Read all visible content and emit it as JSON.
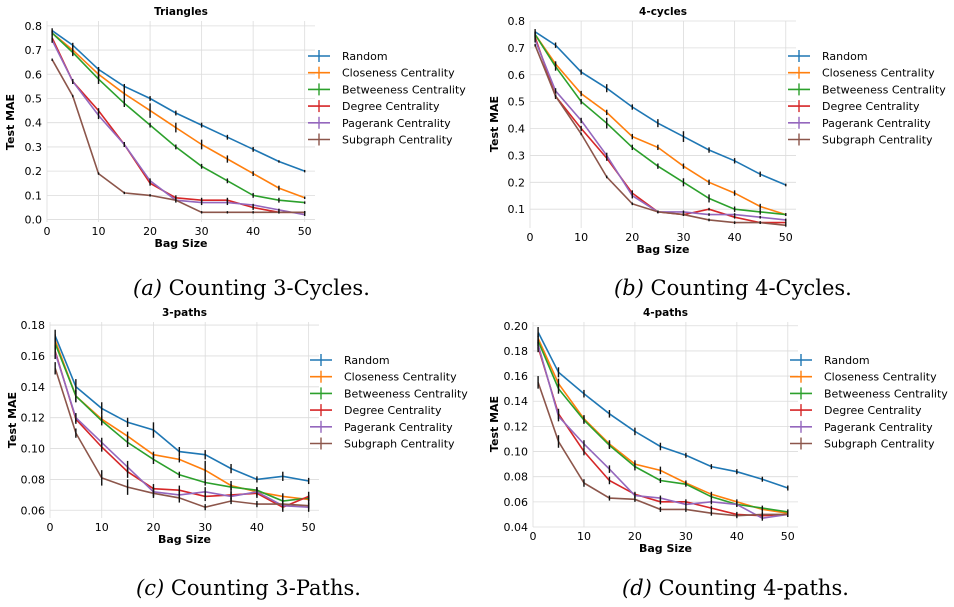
{
  "captions": [
    {
      "letter": "(a)",
      "text": " Counting 3-Cycles."
    },
    {
      "letter": "(b)",
      "text": " Counting 4-Cycles."
    },
    {
      "letter": "(c)",
      "text": " Counting 3-Paths."
    },
    {
      "letter": "(d)",
      "text": " Counting 4-paths."
    }
  ],
  "colors": {
    "Random": "#1f77b4",
    "Closeness Centrality": "#ff7f0e",
    "Betweeness Centrality": "#2ca02c",
    "Degree Centrality": "#d62728",
    "Pagerank Centrality": "#9467bd",
    "Subgraph Centrality": "#8c564b"
  },
  "chart_data": [
    {
      "type": "line",
      "title": "Triangles",
      "xlabel": "Bag Size",
      "ylabel": "Test MAE",
      "xlim": [
        0,
        52
      ],
      "ylim": [
        -0.01,
        0.82
      ],
      "xticks": [
        0,
        10,
        20,
        30,
        40,
        50
      ],
      "yticks": [
        0.0,
        0.1,
        0.2,
        0.3,
        0.4,
        0.5,
        0.6,
        0.7,
        0.8
      ],
      "ytick_labels": [
        "0.0",
        "0.1",
        "0.2",
        "0.3",
        "0.4",
        "0.5",
        "0.6",
        "0.7",
        "0.8"
      ],
      "grid": true,
      "legend_position": "right",
      "x": [
        1,
        5,
        10,
        15,
        20,
        25,
        30,
        35,
        40,
        45,
        50
      ],
      "series": [
        {
          "name": "Random",
          "values": [
            0.78,
            0.72,
            0.62,
            0.55,
            0.5,
            0.44,
            0.39,
            0.34,
            0.29,
            0.24,
            0.2
          ],
          "errors": [
            0.01,
            0.01,
            0.01,
            0.01,
            0.01,
            0.01,
            0.01,
            0.01,
            0.01,
            0.005,
            0.005
          ]
        },
        {
          "name": "Closeness Centrality",
          "values": [
            0.77,
            0.7,
            0.6,
            0.52,
            0.45,
            0.38,
            0.31,
            0.25,
            0.19,
            0.13,
            0.09
          ],
          "errors": [
            0.01,
            0.02,
            0.02,
            0.03,
            0.03,
            0.02,
            0.02,
            0.015,
            0.01,
            0.01,
            0.005
          ]
        },
        {
          "name": "Betweeness Centrality",
          "values": [
            0.77,
            0.69,
            0.58,
            0.48,
            0.39,
            0.3,
            0.22,
            0.16,
            0.1,
            0.08,
            0.07
          ],
          "errors": [
            0.01,
            0.015,
            0.02,
            0.015,
            0.01,
            0.01,
            0.01,
            0.01,
            0.01,
            0.01,
            0.005
          ]
        },
        {
          "name": "Degree Centrality",
          "values": [
            0.75,
            0.57,
            0.45,
            0.31,
            0.15,
            0.09,
            0.08,
            0.08,
            0.05,
            0.03,
            0.03
          ],
          "errors": [
            0.01,
            0.01,
            0.01,
            0.01,
            0.01,
            0.01,
            0.01,
            0.01,
            0.01,
            0.005,
            0.005
          ]
        },
        {
          "name": "Pagerank Centrality",
          "values": [
            0.74,
            0.57,
            0.43,
            0.31,
            0.16,
            0.08,
            0.07,
            0.07,
            0.06,
            0.04,
            0.02
          ],
          "errors": [
            0.01,
            0.01,
            0.015,
            0.01,
            0.01,
            0.01,
            0.01,
            0.01,
            0.005,
            0.005,
            0.005
          ]
        },
        {
          "name": "Subgraph Centrality",
          "values": [
            0.66,
            0.51,
            0.19,
            0.11,
            0.1,
            0.08,
            0.03,
            0.03,
            0.03,
            0.03,
            0.03
          ],
          "errors": [
            0.005,
            0.005,
            0.005,
            0.005,
            0.005,
            0.005,
            0.005,
            0.005,
            0.005,
            0.005,
            0.005
          ]
        }
      ]
    },
    {
      "type": "line",
      "title": "4-cycles",
      "xlabel": "Bag Size",
      "ylabel": "Test MAE",
      "xlim": [
        0,
        52
      ],
      "ylim": [
        0.03,
        0.8
      ],
      "xticks": [
        0,
        10,
        20,
        30,
        40,
        50
      ],
      "yticks": [
        0.1,
        0.2,
        0.3,
        0.4,
        0.5,
        0.6,
        0.7,
        0.8
      ],
      "ytick_labels": [
        "0.1",
        "0.2",
        "0.3",
        "0.4",
        "0.5",
        "0.6",
        "0.7",
        "0.8"
      ],
      "grid": true,
      "legend_position": "right",
      "x": [
        1,
        5,
        10,
        15,
        20,
        25,
        30,
        35,
        40,
        45,
        50
      ],
      "series": [
        {
          "name": "Random",
          "values": [
            0.76,
            0.71,
            0.61,
            0.55,
            0.48,
            0.42,
            0.37,
            0.32,
            0.28,
            0.23,
            0.19
          ],
          "errors": [
            0.01,
            0.01,
            0.01,
            0.015,
            0.01,
            0.015,
            0.02,
            0.01,
            0.01,
            0.01,
            0.005
          ]
        },
        {
          "name": "Closeness Centrality",
          "values": [
            0.75,
            0.64,
            0.53,
            0.46,
            0.37,
            0.33,
            0.26,
            0.2,
            0.16,
            0.11,
            0.08
          ],
          "errors": [
            0.01,
            0.01,
            0.01,
            0.01,
            0.01,
            0.01,
            0.01,
            0.01,
            0.01,
            0.01,
            0.005
          ]
        },
        {
          "name": "Betweeness Centrality",
          "values": [
            0.75,
            0.63,
            0.5,
            0.42,
            0.33,
            0.26,
            0.2,
            0.14,
            0.1,
            0.09,
            0.08
          ],
          "errors": [
            0.01,
            0.015,
            0.01,
            0.02,
            0.01,
            0.01,
            0.015,
            0.015,
            0.01,
            0.01,
            0.005
          ]
        },
        {
          "name": "Degree Centrality",
          "values": [
            0.74,
            0.52,
            0.4,
            0.29,
            0.16,
            0.09,
            0.08,
            0.1,
            0.07,
            0.05,
            0.05
          ],
          "errors": [
            0.01,
            0.01,
            0.01,
            0.01,
            0.01,
            0.005,
            0.005,
            0.005,
            0.005,
            0.005,
            0.005
          ]
        },
        {
          "name": "Pagerank Centrality",
          "values": [
            0.73,
            0.54,
            0.43,
            0.3,
            0.15,
            0.09,
            0.09,
            0.08,
            0.08,
            0.07,
            0.06
          ],
          "errors": [
            0.01,
            0.01,
            0.01,
            0.01,
            0.01,
            0.005,
            0.005,
            0.005,
            0.005,
            0.005,
            0.005
          ]
        },
        {
          "name": "Subgraph Centrality",
          "values": [
            0.71,
            0.52,
            0.38,
            0.22,
            0.12,
            0.09,
            0.08,
            0.06,
            0.05,
            0.05,
            0.04
          ],
          "errors": [
            0.005,
            0.005,
            0.005,
            0.005,
            0.005,
            0.005,
            0.005,
            0.005,
            0.005,
            0.005,
            0.005
          ]
        }
      ]
    },
    {
      "type": "line",
      "title": "3-paths",
      "xlabel": "Bag Size",
      "ylabel": "Test MAE",
      "xlim": [
        0,
        52
      ],
      "ylim": [
        0.055,
        0.182
      ],
      "xticks": [
        0,
        10,
        20,
        30,
        40,
        50
      ],
      "yticks": [
        0.06,
        0.08,
        0.1,
        0.12,
        0.14,
        0.16,
        0.18
      ],
      "ytick_labels": [
        "0.06",
        "0.08",
        "0.10",
        "0.12",
        "0.14",
        "0.16",
        "0.18"
      ],
      "grid": true,
      "legend_position": "right",
      "x": [
        1,
        5,
        10,
        15,
        20,
        25,
        30,
        35,
        40,
        45,
        50
      ],
      "series": [
        {
          "name": "Random",
          "values": [
            0.173,
            0.14,
            0.126,
            0.117,
            0.112,
            0.098,
            0.096,
            0.087,
            0.08,
            0.082,
            0.079
          ],
          "errors": [
            0.004,
            0.005,
            0.004,
            0.003,
            0.005,
            0.003,
            0.003,
            0.003,
            0.002,
            0.003,
            0.002
          ]
        },
        {
          "name": "Closeness Centrality",
          "values": [
            0.17,
            0.134,
            0.119,
            0.108,
            0.096,
            0.093,
            0.086,
            0.076,
            0.072,
            0.069,
            0.067
          ],
          "errors": [
            0.004,
            0.004,
            0.003,
            0.003,
            0.002,
            0.002,
            0.006,
            0.003,
            0.002,
            0.002,
            0.002
          ]
        },
        {
          "name": "Betweeness Centrality",
          "values": [
            0.168,
            0.134,
            0.118,
            0.104,
            0.093,
            0.083,
            0.078,
            0.075,
            0.073,
            0.066,
            0.068
          ],
          "errors": [
            0.004,
            0.004,
            0.003,
            0.003,
            0.003,
            0.002,
            0.002,
            0.002,
            0.002,
            0.002,
            0.002
          ]
        },
        {
          "name": "Degree Centrality",
          "values": [
            0.163,
            0.119,
            0.101,
            0.085,
            0.074,
            0.073,
            0.069,
            0.07,
            0.071,
            0.062,
            0.069
          ],
          "errors": [
            0.004,
            0.003,
            0.003,
            0.004,
            0.003,
            0.003,
            0.003,
            0.003,
            0.003,
            0.003,
            0.003
          ]
        },
        {
          "name": "Pagerank Centrality",
          "values": [
            0.162,
            0.12,
            0.104,
            0.088,
            0.072,
            0.07,
            0.072,
            0.069,
            0.072,
            0.063,
            0.062
          ],
          "errors": [
            0.004,
            0.003,
            0.003,
            0.004,
            0.003,
            0.003,
            0.003,
            0.003,
            0.003,
            0.003,
            0.003
          ]
        },
        {
          "name": "Subgraph Centrality",
          "values": [
            0.152,
            0.11,
            0.081,
            0.075,
            0.071,
            0.068,
            0.062,
            0.066,
            0.064,
            0.064,
            0.063
          ],
          "errors": [
            0.004,
            0.003,
            0.005,
            0.005,
            0.003,
            0.003,
            0.002,
            0.002,
            0.002,
            0.002,
            0.002
          ]
        }
      ]
    },
    {
      "type": "line",
      "title": "4-paths",
      "xlabel": "Bag Size",
      "ylabel": "Test MAE",
      "xlim": [
        0,
        52
      ],
      "ylim": [
        0.04,
        0.203
      ],
      "xticks": [
        0,
        10,
        20,
        30,
        40,
        50
      ],
      "yticks": [
        0.04,
        0.06,
        0.08,
        0.1,
        0.12,
        0.14,
        0.16,
        0.18,
        0.2
      ],
      "ytick_labels": [
        "0.04",
        "0.06",
        "0.08",
        "0.10",
        "0.12",
        "0.14",
        "0.16",
        "0.18",
        "0.20"
      ],
      "grid": true,
      "legend_position": "right",
      "x": [
        1,
        5,
        10,
        15,
        20,
        25,
        30,
        35,
        40,
        45,
        50
      ],
      "series": [
        {
          "name": "Random",
          "values": [
            0.195,
            0.163,
            0.146,
            0.13,
            0.116,
            0.104,
            0.097,
            0.088,
            0.084,
            0.078,
            0.071
          ],
          "errors": [
            0.004,
            0.004,
            0.003,
            0.003,
            0.003,
            0.003,
            0.002,
            0.002,
            0.002,
            0.002,
            0.002
          ]
        },
        {
          "name": "Closeness Centrality",
          "values": [
            0.19,
            0.154,
            0.126,
            0.106,
            0.09,
            0.085,
            0.075,
            0.066,
            0.06,
            0.054,
            0.051
          ],
          "errors": [
            0.004,
            0.004,
            0.003,
            0.003,
            0.003,
            0.003,
            0.002,
            0.002,
            0.002,
            0.002,
            0.002
          ]
        },
        {
          "name": "Betweeness Centrality",
          "values": [
            0.188,
            0.15,
            0.125,
            0.105,
            0.088,
            0.077,
            0.074,
            0.064,
            0.058,
            0.055,
            0.052
          ],
          "errors": [
            0.004,
            0.004,
            0.003,
            0.003,
            0.003,
            0.002,
            0.002,
            0.002,
            0.002,
            0.002,
            0.002
          ]
        },
        {
          "name": "Degree Centrality",
          "values": [
            0.183,
            0.13,
            0.1,
            0.077,
            0.066,
            0.06,
            0.06,
            0.055,
            0.05,
            0.049,
            0.05
          ],
          "errors": [
            0.004,
            0.004,
            0.003,
            0.003,
            0.002,
            0.002,
            0.002,
            0.002,
            0.002,
            0.002,
            0.002
          ]
        },
        {
          "name": "Pagerank Centrality",
          "values": [
            0.185,
            0.128,
            0.106,
            0.086,
            0.065,
            0.063,
            0.058,
            0.06,
            0.058,
            0.047,
            0.05
          ],
          "errors": [
            0.004,
            0.004,
            0.003,
            0.003,
            0.002,
            0.002,
            0.002,
            0.002,
            0.002,
            0.002,
            0.002
          ]
        },
        {
          "name": "Subgraph Centrality",
          "values": [
            0.155,
            0.108,
            0.075,
            0.063,
            0.062,
            0.054,
            0.054,
            0.051,
            0.049,
            0.05,
            0.05
          ],
          "errors": [
            0.005,
            0.005,
            0.003,
            0.002,
            0.002,
            0.002,
            0.002,
            0.002,
            0.002,
            0.002,
            0.002
          ]
        }
      ]
    }
  ]
}
